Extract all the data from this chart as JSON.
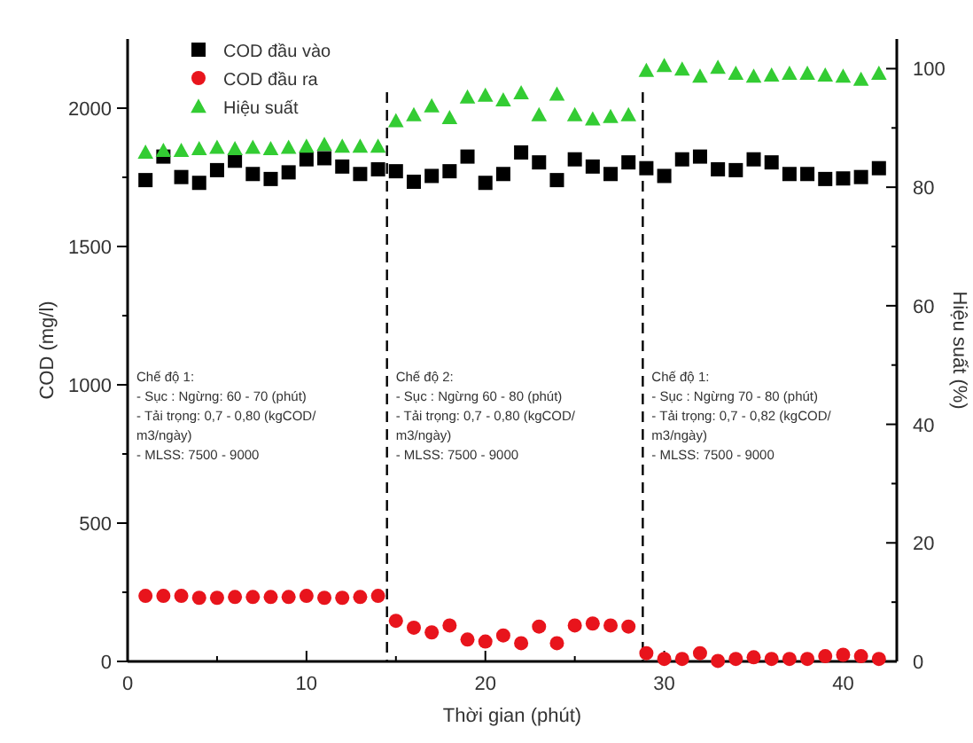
{
  "chart_data": {
    "type": "scatter",
    "xlabel": "Thời gian (phút)",
    "ylabel": "COD (mg/l)",
    "y2label": "Hiệu suất (%)",
    "x": [
      1,
      2,
      3,
      4,
      5,
      6,
      7,
      8,
      9,
      10,
      11,
      12,
      13,
      14,
      15,
      16,
      17,
      18,
      19,
      20,
      21,
      22,
      23,
      24,
      25,
      26,
      27,
      28,
      29,
      30,
      31,
      32,
      33,
      34,
      35,
      36,
      37,
      38,
      39,
      40,
      41,
      42
    ],
    "series": [
      {
        "name": "COD đầu vào",
        "color": "#000000",
        "marker": "square",
        "values": [
          1740,
          1825,
          1751,
          1730,
          1776,
          1810,
          1762,
          1744,
          1768,
          1815,
          1819,
          1789,
          1762,
          1779,
          1772,
          1734,
          1755,
          1772,
          1825,
          1730,
          1762,
          1840,
          1804,
          1740,
          1815,
          1789,
          1762,
          1804,
          1783,
          1755,
          1815,
          1825,
          1779,
          1776,
          1815,
          1804,
          1762,
          1762,
          1744,
          1746,
          1751,
          1783
        ]
      },
      {
        "name": "COD đầu ra",
        "color": "#e8141c",
        "marker": "circle",
        "values": [
          237,
          237,
          237,
          230,
          230,
          233,
          233,
          233,
          233,
          237,
          230,
          230,
          233,
          237,
          147,
          122,
          105,
          130,
          79,
          72,
          94,
          66,
          126,
          66,
          130,
          137,
          130,
          126,
          30,
          9,
          9,
          30,
          2,
          9,
          15,
          9,
          9,
          9,
          19,
          24,
          19,
          9
        ]
      },
      {
        "name": "Hiệu suất",
        "color": "#33cc33",
        "marker": "triangle",
        "axis": "y2",
        "values": [
          85.9,
          86.2,
          86.2,
          86.5,
          86.7,
          86.5,
          86.7,
          86.5,
          86.7,
          86.9,
          87.2,
          86.9,
          86.9,
          86.9,
          91.2,
          92.2,
          93.7,
          91.7,
          95.2,
          95.5,
          94.7,
          95.9,
          92.2,
          95.7,
          92.2,
          91.5,
          91.9,
          92.2,
          99.7,
          100.5,
          99.9,
          98.7,
          100.2,
          99.2,
          98.7,
          98.9,
          99.2,
          99.2,
          98.9,
          98.7,
          98.2,
          99.2
        ]
      }
    ],
    "xlim": [
      0,
      43
    ],
    "xticks": [
      0,
      {
        "value": 5,
        "label": null
      },
      10,
      {
        "value": 15,
        "label": null
      },
      20,
      {
        "value": 25,
        "label": null
      },
      30,
      {
        "value": 35,
        "label": null
      },
      40
    ],
    "ylim": [
      0,
      2250
    ],
    "yticks": [
      0,
      {
        "value": 250,
        "label": null
      },
      500,
      {
        "value": 750,
        "label": null
      },
      1000,
      {
        "value": 1250,
        "label": null
      },
      1500,
      {
        "value": 1750,
        "label": null
      },
      2000
    ],
    "y2lim": [
      0,
      105
    ],
    "y2ticks": [
      0,
      {
        "value": 10,
        "label": null
      },
      20,
      {
        "value": 30,
        "label": null
      },
      40,
      {
        "value": 50,
        "label": null
      },
      60,
      {
        "value": 70,
        "label": null
      },
      80,
      {
        "value": 90,
        "label": null
      },
      100
    ],
    "ref_lines": [
      {
        "axis": "x",
        "value": 14.5,
        "color": "#000000",
        "line_style": "dashed"
      },
      {
        "axis": "x",
        "value": 28.8,
        "color": "#000000",
        "line_style": "dashed"
      }
    ],
    "annotations": [
      "Chế độ 1:\n- Sục : Ngừng: 60 - 70 (phút)\n- Tải trọng: 0,7 - 0,80 (kgCOD/\nm3/ngày)\n- MLSS: 7500 - 9000",
      "Chế độ 2:\n- Sục : Ngừng 60 - 80 (phút)\n- Tải trọng: 0,7 - 0,80 (kgCOD/\nm3/ngày)\n- MLSS: 7500 - 9000",
      "Chế độ 1:\n- Sục : Ngừng 70 - 80 (phút)\n- Tải trọng: 0,7 - 0,82 (kgCOD/\nm3/ngày)\n- MLSS: 7500 - 9000"
    ],
    "legend": "top left",
    "grid": false
  }
}
